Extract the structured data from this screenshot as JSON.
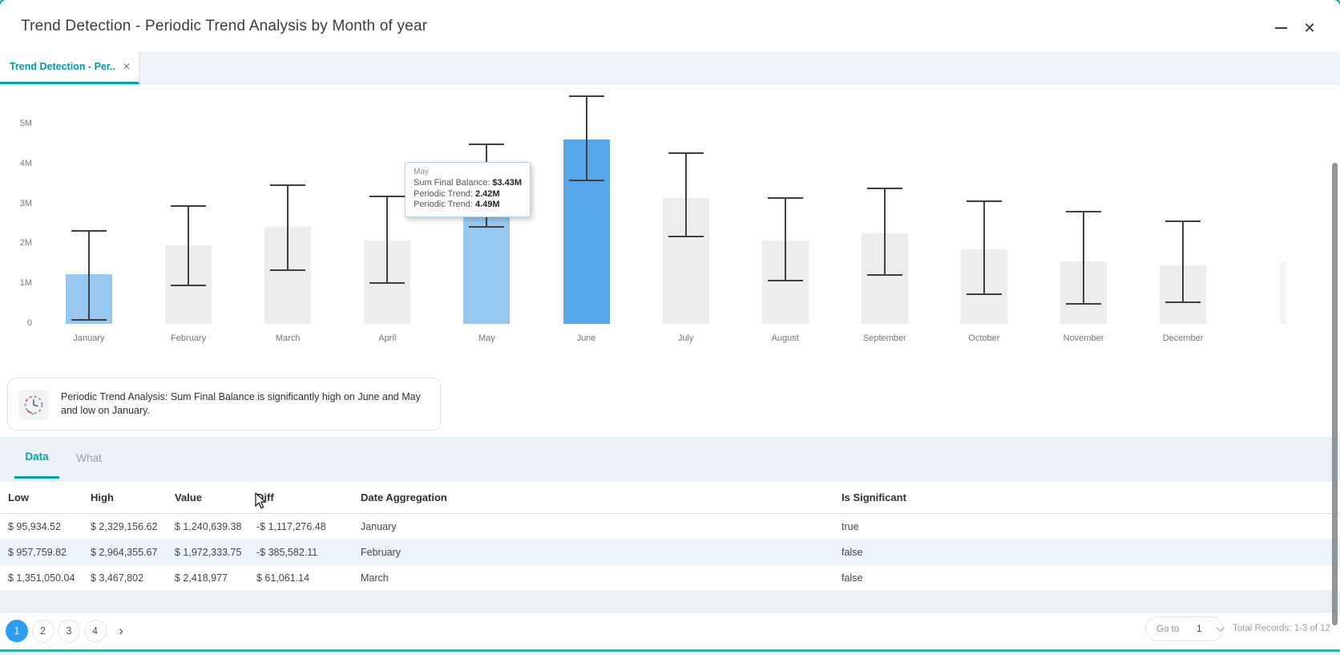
{
  "window": {
    "title": "Trend Detection - Periodic Trend Analysis by Month of year",
    "minimize_icon": "minimize",
    "close_icon": "✕"
  },
  "tab_bar": {
    "active_tab": {
      "label": "Trend Detection - Per...",
      "close_icon": "✕"
    }
  },
  "chart_data": {
    "type": "bar",
    "title": "Periodic Trend Analysis by Month of year",
    "xlabel": "Month of year",
    "ylabel": "Sum Final Balance",
    "ylim": [
      0,
      5.8
    ],
    "grid": false,
    "legend_position": "none",
    "y_ticks": [
      {
        "label": "5M",
        "value": 5
      },
      {
        "label": "4M",
        "value": 4
      },
      {
        "label": "3M",
        "value": 3
      },
      {
        "label": "2M",
        "value": 2
      },
      {
        "label": "1M",
        "value": 1
      },
      {
        "label": "0",
        "value": 0
      }
    ],
    "categories": [
      "January",
      "February",
      "March",
      "April",
      "May",
      "June",
      "July",
      "August",
      "September",
      "October",
      "November",
      "December"
    ],
    "series": [
      {
        "name": "Sum Final Balance ($M)",
        "values": [
          1.24,
          1.97,
          2.42,
          2.08,
          3.43,
          4.62,
          3.16,
          2.08,
          2.26,
          1.87,
          1.57,
          1.47
        ]
      },
      {
        "name": "Periodic Trend lower ($M)",
        "values": [
          0.1,
          0.96,
          1.35,
          1.03,
          2.42,
          3.59,
          2.19,
          1.08,
          1.23,
          0.74,
          0.5,
          0.54
        ]
      },
      {
        "name": "Periodic Trend upper ($M)",
        "values": [
          2.33,
          2.96,
          3.47,
          3.2,
          4.49,
          5.7,
          4.28,
          3.15,
          3.4,
          3.07,
          2.82,
          2.58
        ]
      }
    ],
    "bar_color_keys": [
      "highlight",
      "default",
      "default",
      "default",
      "highlight",
      "strong",
      "default",
      "default",
      "default",
      "default",
      "default",
      "default"
    ]
  },
  "tooltip": {
    "title": "May",
    "rows": [
      {
        "label": "Sum Final Balance:",
        "value": "$3.43M"
      },
      {
        "label": "Periodic Trend:",
        "value": "2.42M"
      },
      {
        "label": "Periodic Trend:",
        "value": "4.49M"
      }
    ]
  },
  "insight": {
    "icon": "periodic-trend-clock-icon",
    "text": "Periodic Trend Analysis: Sum Final Balance is significantly high on June and May and low on January."
  },
  "section_tabs": {
    "items": [
      {
        "label": "Data",
        "active": true
      },
      {
        "label": "What",
        "active": false
      }
    ]
  },
  "table": {
    "columns": [
      "Low",
      "High",
      "Value",
      "Diff",
      "Date Aggregation",
      "Is Significant"
    ],
    "rows": [
      [
        "$ 95,934.52",
        "$ 2,329,156.62",
        "$ 1,240,639.38",
        "-$ 1,117,276.48",
        "January",
        "true"
      ],
      [
        "$ 957,759.82",
        "$ 2,964,355.67",
        "$ 1,972,333.75",
        "-$ 385,582.11",
        "February",
        "false"
      ],
      [
        "$ 1,351,050.04",
        "$ 3,467,802",
        "$ 2,418,977",
        "$ 61,061.14",
        "March",
        "false"
      ]
    ]
  },
  "pagination": {
    "pages": [
      "1",
      "2",
      "3",
      "4"
    ],
    "active_page": "1",
    "next_icon": "›",
    "goto_label": "Go to",
    "goto_value": "1",
    "total_records": "Total Records: 1-3 of 12"
  },
  "colors": {
    "accent_teal": "#00a2ab",
    "active_page_blue": "#2b9ef3",
    "bar_default": "#ededed",
    "bar_highlight": "#97c8f1",
    "bar_strong": "#55a7e9",
    "whisker": "#3f3f3f",
    "alt_row": "#eef4fb",
    "bottom_line": "#2fb3a3",
    "lower_band": "#ecf1f7"
  }
}
